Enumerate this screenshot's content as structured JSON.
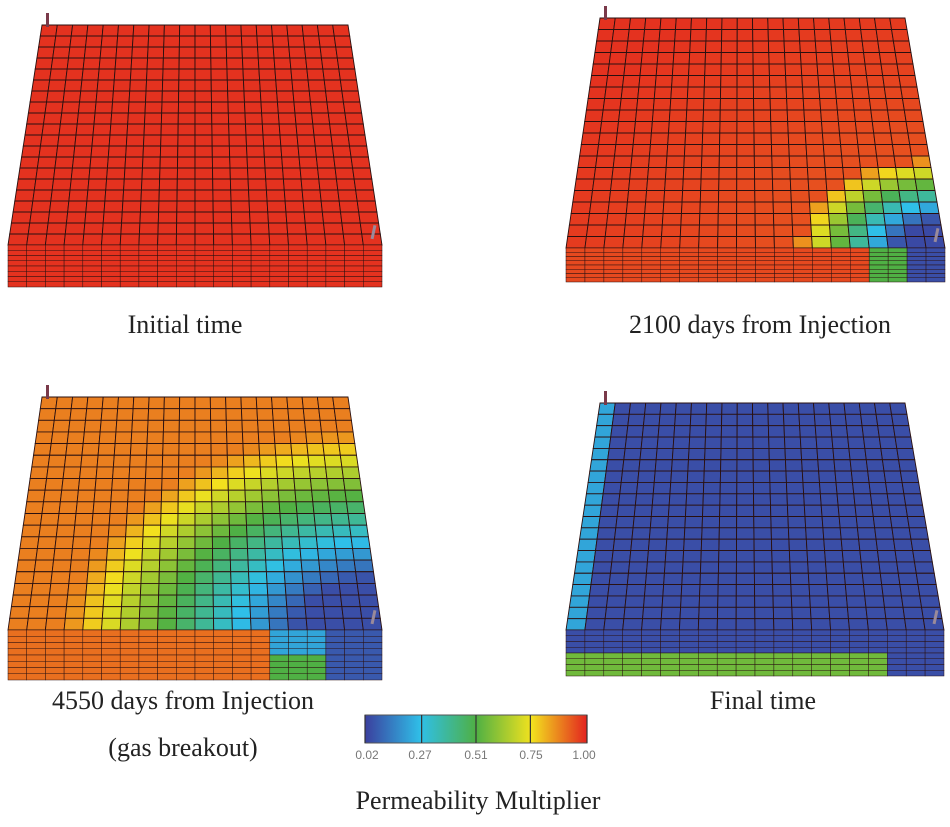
{
  "panels": [
    {
      "id": "initial",
      "label": "Initial time"
    },
    {
      "id": "2100",
      "label": "2100 days from Injection"
    },
    {
      "id": "4550",
      "label": "4550 days from Injection",
      "sublabel": "(gas breakout)"
    },
    {
      "id": "final",
      "label": "Final time"
    }
  ],
  "colorbar": {
    "title": "Permeability Multiplier",
    "ticks": [
      "0.02",
      "0.27",
      "0.51",
      "0.75",
      "1.00"
    ],
    "min": 0.02,
    "max": 1.0,
    "colors": [
      "#3b3f9e",
      "#2fbfe8",
      "#4fb044",
      "#f2e21e",
      "#e3231f"
    ]
  },
  "grid_color": "#2a1010"
}
